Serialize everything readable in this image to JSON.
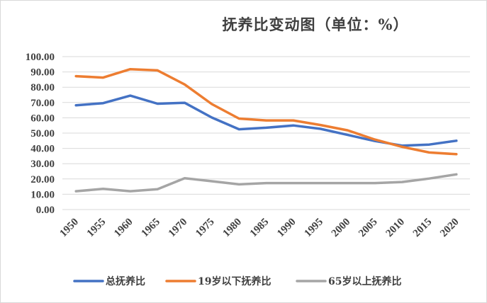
{
  "chart_data": {
    "type": "line",
    "title": "抚养比变动图（单位：%）",
    "x": [
      "1950",
      "1955",
      "1960",
      "1965",
      "1970",
      "1975",
      "1980",
      "1985",
      "1990",
      "1995",
      "2000",
      "2005",
      "2010",
      "2015",
      "2020"
    ],
    "ylim": [
      0,
      100
    ],
    "yticks": [
      "0.00",
      "10.00",
      "20.00",
      "30.00",
      "40.00",
      "50.00",
      "60.00",
      "70.00",
      "80.00",
      "90.00",
      "100.00"
    ],
    "grid": true,
    "legend": "bottom",
    "series": [
      {
        "name": "总抚养比",
        "color": "#4472c4",
        "values": [
          68.2,
          69.6,
          74.5,
          69.2,
          69.8,
          60.2,
          52.5,
          53.5,
          55.0,
          52.8,
          48.8,
          44.8,
          41.8,
          42.5,
          45.0
        ]
      },
      {
        "name": "19岁以下抚养比",
        "color": "#ed7d31",
        "values": [
          87.2,
          86.3,
          91.8,
          91.0,
          81.8,
          69.0,
          59.5,
          58.3,
          58.3,
          55.3,
          51.8,
          45.8,
          41.0,
          37.3,
          36.2
        ]
      },
      {
        "name": "65岁以上抚养比",
        "color": "#a5a5a5",
        "values": [
          12.0,
          13.5,
          12.0,
          13.3,
          20.5,
          18.5,
          16.5,
          17.3,
          17.3,
          17.3,
          17.3,
          17.3,
          18.0,
          20.3,
          23.0
        ]
      }
    ]
  }
}
